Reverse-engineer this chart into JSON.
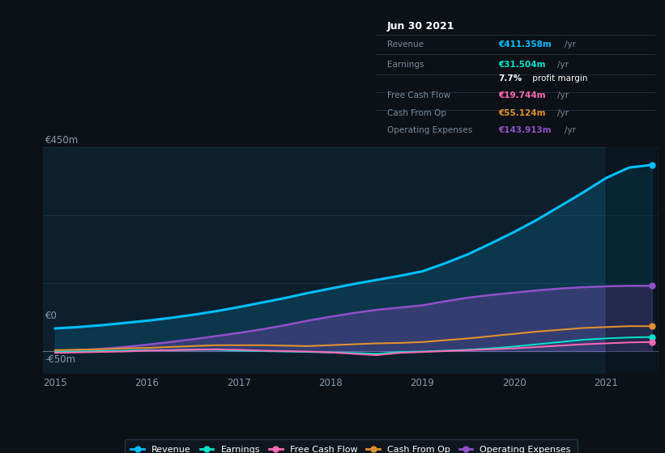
{
  "bg_color": "#0c1117",
  "plot_bg_color": "#0d1f2d",
  "grid_color": "#1a3040",
  "x_years": [
    2015.0,
    2015.25,
    2015.5,
    2015.75,
    2016.0,
    2016.25,
    2016.5,
    2016.75,
    2017.0,
    2017.25,
    2017.5,
    2017.75,
    2018.0,
    2018.25,
    2018.5,
    2018.75,
    2019.0,
    2019.25,
    2019.5,
    2019.75,
    2020.0,
    2020.25,
    2020.5,
    2020.75,
    2021.0,
    2021.25,
    2021.5
  ],
  "revenue": [
    50,
    53,
    57,
    62,
    67,
    73,
    80,
    88,
    97,
    107,
    117,
    128,
    138,
    148,
    157,
    166,
    176,
    194,
    214,
    238,
    263,
    290,
    320,
    350,
    382,
    405,
    411
  ],
  "earnings": [
    -2,
    -1,
    0,
    1,
    2,
    2,
    3,
    3,
    1,
    0,
    -1,
    -2,
    -3,
    -4,
    -6,
    -2,
    -1,
    1,
    3,
    6,
    10,
    15,
    20,
    25,
    28,
    30,
    31
  ],
  "free_cash_flow": [
    -4,
    -3,
    -2,
    -1,
    1,
    2,
    3,
    4,
    3,
    1,
    0,
    -1,
    -3,
    -6,
    -9,
    -4,
    -2,
    0,
    2,
    4,
    6,
    9,
    12,
    15,
    17,
    19,
    20
  ],
  "cash_from_op": [
    2,
    3,
    4,
    6,
    7,
    9,
    11,
    13,
    13,
    13,
    12,
    11,
    13,
    15,
    17,
    18,
    20,
    24,
    28,
    33,
    38,
    43,
    47,
    51,
    53,
    55,
    55
  ],
  "operating_expenses": [
    0,
    2,
    5,
    9,
    14,
    20,
    26,
    33,
    40,
    48,
    57,
    67,
    76,
    84,
    91,
    96,
    101,
    110,
    118,
    124,
    129,
    134,
    138,
    141,
    143,
    144,
    144
  ],
  "revenue_color": "#00bfff",
  "earnings_color": "#00e5cc",
  "free_cash_flow_color": "#ff69b4",
  "cash_from_op_color": "#e09030",
  "operating_expenses_color": "#9050c8",
  "highlight_x_start": 2021.0,
  "highlight_x_end": 2021.55,
  "ylim_min": -50,
  "ylim_max": 450,
  "xlim_min": 2014.87,
  "xlim_max": 2021.57,
  "xticks": [
    2015,
    2016,
    2017,
    2018,
    2019,
    2020,
    2021
  ],
  "legend_items": [
    "Revenue",
    "Earnings",
    "Free Cash Flow",
    "Cash From Op",
    "Operating Expenses"
  ],
  "tooltip_date": "Jun 30 2021",
  "tooltip_revenue_val": "€411.358m",
  "tooltip_earnings_val": "€31.504m",
  "tooltip_profit_margin": "7.7% profit margin",
  "tooltip_fcf_val": "€19.744m",
  "tooltip_cashop_val": "€55.124m",
  "tooltip_opex_val": "€143.913m"
}
